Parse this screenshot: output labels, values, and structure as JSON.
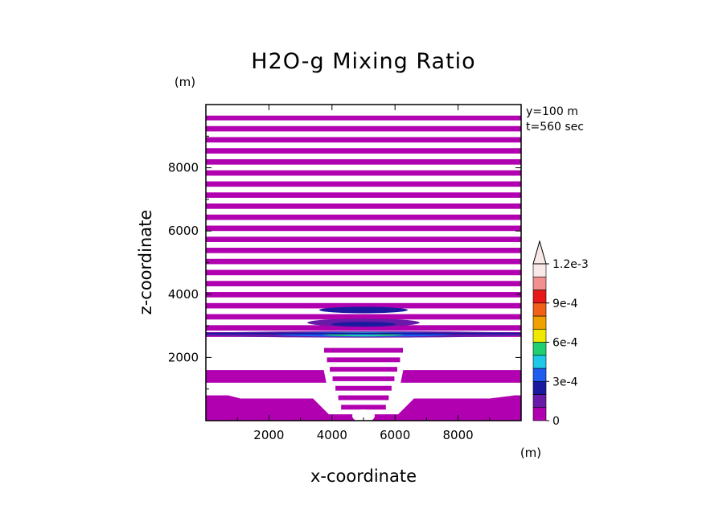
{
  "chart_data": {
    "type": "heatmap",
    "title": "H2O-g Mixing Ratio",
    "xlabel": "x-coordinate",
    "ylabel": "z-coordinate",
    "x_unit": "(m)",
    "y_unit": "(m)",
    "xlim": [
      0,
      10000
    ],
    "ylim": [
      0,
      10000
    ],
    "x_ticks": [
      2000,
      4000,
      6000,
      8000
    ],
    "y_ticks": [
      2000,
      4000,
      6000,
      8000
    ],
    "x_tick_labels": [
      "2000",
      "4000",
      "6000",
      "8000"
    ],
    "y_tick_labels": [
      "2000",
      "4000",
      "6000",
      "8000"
    ],
    "annotations": [
      "y=100 m",
      "t=560 sec"
    ],
    "colorbar": {
      "levels": [
        0,
        0.00015,
        0.0003,
        0.00045,
        0.0006,
        0.00075,
        0.0009,
        0.00105,
        0.0012,
        0.00135
      ],
      "labels": [
        {
          "value": 0,
          "text": "0"
        },
        {
          "value": 0.0003,
          "text": "3e-4"
        },
        {
          "value": 0.0006,
          "text": "6e-4"
        },
        {
          "value": 0.0009,
          "text": "9e-4"
        },
        {
          "value": 0.0012,
          "text": "1.2e-3"
        }
      ],
      "colors": [
        "#b000b0",
        "#6a1aa8",
        "#1a1aa0",
        "#1e5cf0",
        "#20c8e8",
        "#20d070",
        "#f0e800",
        "#f0a000",
        "#f06018",
        "#e81818",
        "#f09090",
        "#f8e8e8"
      ],
      "extend": "max"
    },
    "background_bands_z": [
      [
        9500,
        9650
      ],
      [
        9150,
        9320
      ],
      [
        8800,
        8970
      ],
      [
        8450,
        8620
      ],
      [
        8100,
        8270
      ],
      [
        7750,
        7920
      ],
      [
        7400,
        7570
      ],
      [
        7050,
        7220
      ],
      [
        6700,
        6870
      ],
      [
        6350,
        6520
      ],
      [
        6000,
        6170
      ],
      [
        5650,
        5820
      ],
      [
        5300,
        5470
      ],
      [
        4950,
        5120
      ],
      [
        4600,
        4770
      ],
      [
        4250,
        4420
      ],
      [
        3900,
        4070
      ],
      [
        3550,
        3720
      ],
      [
        3200,
        3370
      ],
      [
        2850,
        3020
      ],
      [
        2650,
        2800
      ],
      [
        1200,
        1600
      ],
      [
        0,
        800
      ]
    ]
  }
}
